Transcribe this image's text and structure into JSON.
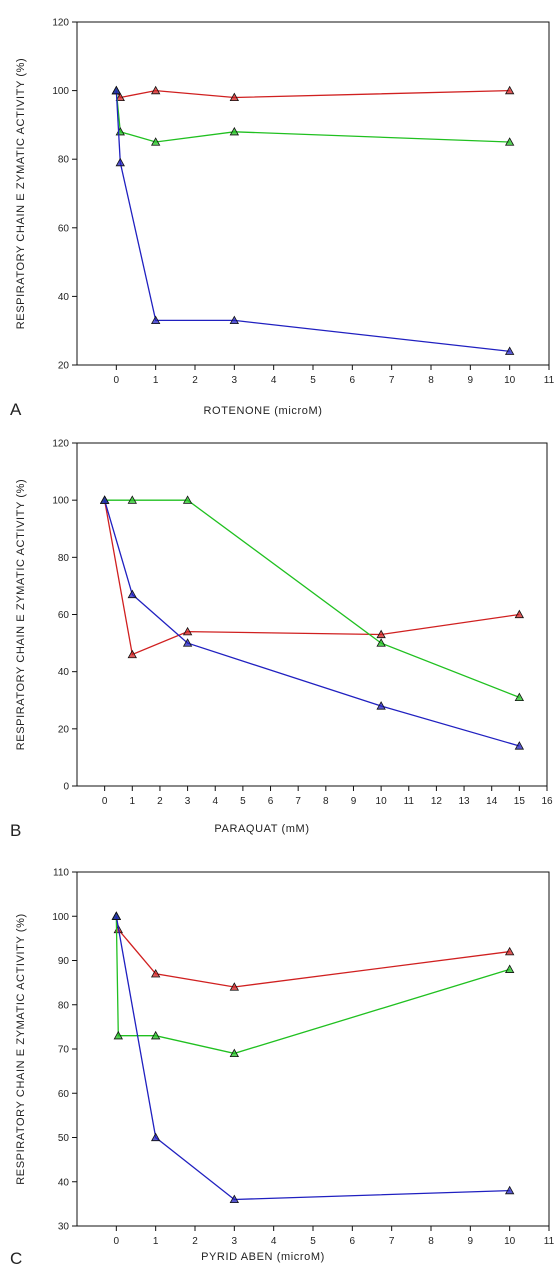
{
  "chart_data": [
    {
      "type": "line",
      "panel_label": "A",
      "xlabel": "ROTENONE (microM)",
      "ylabel": "RESPIRATORY CHAIN E ZYMATIC ACTIVITY (%)",
      "xlim": [
        -1,
        11
      ],
      "ylim": [
        20,
        120
      ],
      "x_ticks": [
        0,
        1,
        2,
        3,
        4,
        5,
        6,
        7,
        8,
        9,
        10,
        11
      ],
      "y_ticks": [
        20,
        40,
        60,
        80,
        100,
        120
      ],
      "series": [
        {
          "color": "#d02020",
          "points": [
            [
              0,
              100
            ],
            [
              0.1,
              98
            ],
            [
              1,
              100
            ],
            [
              3,
              98
            ],
            [
              10,
              100
            ]
          ]
        },
        {
          "color": "#20c020",
          "points": [
            [
              0,
              100
            ],
            [
              0.1,
              88
            ],
            [
              1,
              85
            ],
            [
              3,
              88
            ],
            [
              10,
              85
            ]
          ]
        },
        {
          "color": "#2020c0",
          "points": [
            [
              0,
              100
            ],
            [
              0.1,
              79
            ],
            [
              1,
              33
            ],
            [
              3,
              33
            ],
            [
              10,
              24
            ]
          ]
        }
      ]
    },
    {
      "type": "line",
      "panel_label": "B",
      "xlabel": "PARAQUAT (mM)",
      "ylabel": "RESPIRATORY CHAIN E ZYMATIC ACTIVITY (%)",
      "xlim": [
        -1,
        16
      ],
      "ylim": [
        0,
        120
      ],
      "x_ticks": [
        0,
        1,
        2,
        3,
        4,
        5,
        6,
        7,
        8,
        9,
        10,
        11,
        12,
        13,
        14,
        15,
        16
      ],
      "y_ticks": [
        0,
        20,
        40,
        60,
        80,
        100,
        120
      ],
      "series": [
        {
          "color": "#d02020",
          "points": [
            [
              0,
              100
            ],
            [
              1,
              46
            ],
            [
              3,
              54
            ],
            [
              10,
              53
            ],
            [
              15,
              60
            ]
          ]
        },
        {
          "color": "#20c020",
          "points": [
            [
              0,
              100
            ],
            [
              1,
              100
            ],
            [
              3,
              100
            ],
            [
              10,
              50
            ],
            [
              15,
              31
            ]
          ]
        },
        {
          "color": "#2020c0",
          "points": [
            [
              0,
              100
            ],
            [
              1,
              67
            ],
            [
              3,
              50
            ],
            [
              10,
              28
            ],
            [
              15,
              14
            ]
          ]
        }
      ]
    },
    {
      "type": "line",
      "panel_label": "C",
      "xlabel": "PYRID ABEN (microM)",
      "ylabel": "RESPIRATORY CHAIN E ZYMATIC ACTIVITY (%)",
      "xlim": [
        -1,
        11
      ],
      "ylim": [
        30,
        110
      ],
      "x_ticks": [
        0,
        1,
        2,
        3,
        4,
        5,
        6,
        7,
        8,
        9,
        10,
        11
      ],
      "y_ticks": [
        30,
        40,
        50,
        60,
        70,
        80,
        90,
        100,
        110
      ],
      "series": [
        {
          "color": "#d02020",
          "points": [
            [
              0,
              100
            ],
            [
              0.05,
              97
            ],
            [
              1,
              87
            ],
            [
              3,
              84
            ],
            [
              10,
              92
            ]
          ]
        },
        {
          "color": "#20c020",
          "points": [
            [
              0,
              100
            ],
            [
              0.05,
              73
            ],
            [
              1,
              73
            ],
            [
              3,
              69
            ],
            [
              10,
              88
            ]
          ]
        },
        {
          "color": "#2020c0",
          "points": [
            [
              0,
              100
            ],
            [
              1,
              50
            ],
            [
              3,
              36
            ],
            [
              10,
              38
            ]
          ]
        }
      ]
    }
  ]
}
